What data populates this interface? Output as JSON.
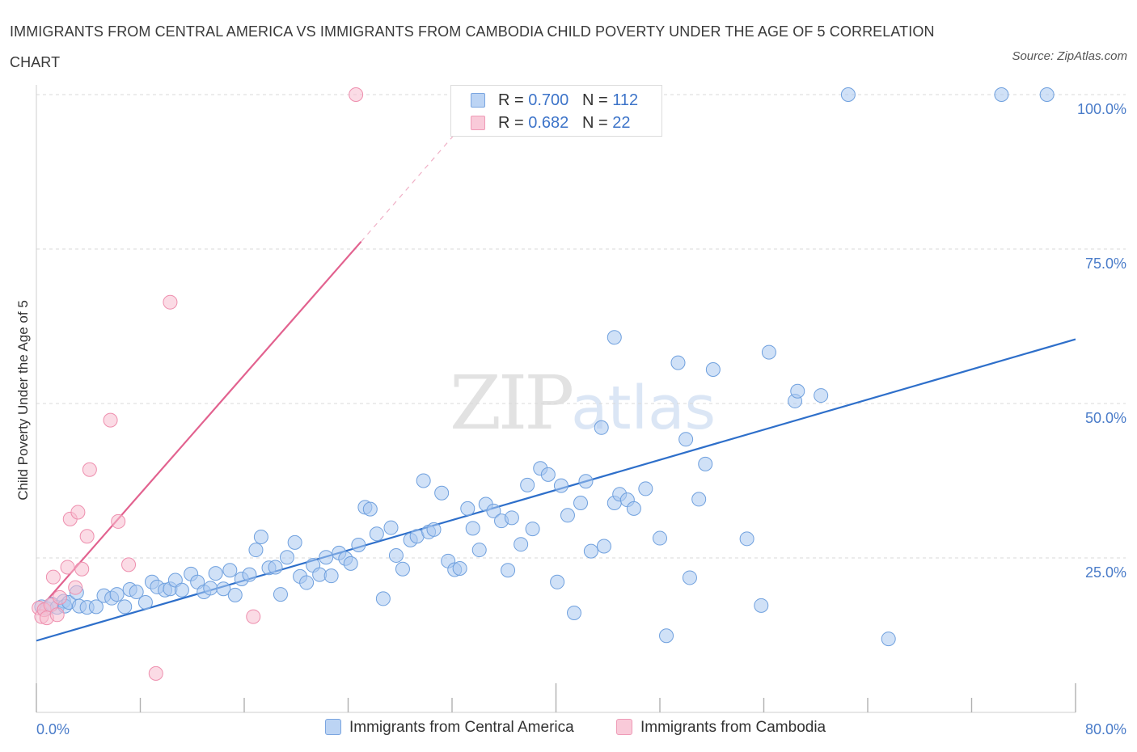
{
  "title": "IMMIGRANTS FROM CENTRAL AMERICA VS IMMIGRANTS FROM CAMBODIA CHILD POVERTY UNDER THE AGE OF 5 CORRELATION CHART",
  "source": "Source: ZipAtlas.com",
  "watermark": {
    "zip": "ZIP",
    "atlas": "atlas"
  },
  "legend": {
    "rows": [
      {
        "r_label": "R = ",
        "r_value": "0.700",
        "n_label": "N = ",
        "n_value": "112"
      },
      {
        "r_label": "R = ",
        "r_value": " 0.682",
        "n_label": "N = ",
        "n_value": " 22"
      }
    ]
  },
  "colors": {
    "blue_fill": "#a9c8f0",
    "blue_stroke": "#6fa0de",
    "blue_line": "#2e6fca",
    "pink_fill": "#f7bdd0",
    "pink_stroke": "#ee8fae",
    "pink_line": "#e2628f",
    "tick": "#4a7cc9",
    "grid": "#d9d9d9"
  },
  "chart_data": {
    "type": "scatter",
    "title": "IMMIGRANTS FROM CENTRAL AMERICA VS IMMIGRANTS FROM CAMBODIA CHILD POVERTY UNDER THE AGE OF 5 CORRELATION CHART",
    "xlabel": "",
    "ylabel": "Child Poverty Under the Age of 5",
    "xlim": [
      0,
      80
    ],
    "ylim": [
      0,
      100
    ],
    "x_tick_labels": [
      {
        "value": 0,
        "label": "0.0%"
      },
      {
        "value": 80,
        "label": "80.0%"
      }
    ],
    "y_tick_labels": [
      {
        "value": 25,
        "label": "25.0%"
      },
      {
        "value": 50,
        "label": "50.0%"
      },
      {
        "value": 75,
        "label": "75.0%"
      },
      {
        "value": 100,
        "label": "100.0%"
      }
    ],
    "grid": true,
    "legend_position": "bottom",
    "series": [
      {
        "name": "Immigrants from Central America",
        "color": "#a9c8f0",
        "R": 0.7,
        "N": 112,
        "trend": {
          "x": [
            0,
            80
          ],
          "y": [
            11.6,
            60.4
          ]
        },
        "points": [
          [
            0.4,
            17.1
          ],
          [
            0.8,
            16.8
          ],
          [
            1.2,
            17.5
          ],
          [
            1.6,
            17.0
          ],
          [
            2.1,
            18.0
          ],
          [
            2.2,
            17.2
          ],
          [
            2.5,
            17.8
          ],
          [
            3.1,
            19.4
          ],
          [
            3.3,
            17.2
          ],
          [
            3.9,
            17.0
          ],
          [
            4.6,
            17.1
          ],
          [
            5.2,
            18.9
          ],
          [
            5.8,
            18.5
          ],
          [
            6.2,
            19.1
          ],
          [
            6.8,
            17.1
          ],
          [
            7.2,
            19.9
          ],
          [
            7.7,
            19.5
          ],
          [
            8.4,
            17.8
          ],
          [
            8.9,
            21.1
          ],
          [
            9.3,
            20.3
          ],
          [
            9.9,
            19.8
          ],
          [
            10.3,
            20.0
          ],
          [
            10.7,
            21.4
          ],
          [
            11.2,
            19.8
          ],
          [
            11.9,
            22.4
          ],
          [
            12.4,
            21.1
          ],
          [
            12.9,
            19.5
          ],
          [
            13.4,
            20.1
          ],
          [
            13.8,
            22.5
          ],
          [
            14.4,
            20.0
          ],
          [
            14.9,
            23.0
          ],
          [
            15.3,
            19.0
          ],
          [
            15.8,
            21.6
          ],
          [
            16.4,
            22.3
          ],
          [
            16.9,
            26.3
          ],
          [
            17.3,
            28.4
          ],
          [
            17.9,
            23.4
          ],
          [
            18.4,
            23.5
          ],
          [
            18.8,
            19.1
          ],
          [
            19.3,
            25.1
          ],
          [
            19.9,
            27.5
          ],
          [
            20.3,
            22.0
          ],
          [
            20.8,
            21.0
          ],
          [
            21.3,
            23.8
          ],
          [
            21.8,
            22.3
          ],
          [
            22.3,
            25.1
          ],
          [
            22.7,
            22.1
          ],
          [
            23.3,
            25.8
          ],
          [
            23.8,
            24.9
          ],
          [
            24.2,
            24.1
          ],
          [
            24.8,
            27.1
          ],
          [
            25.3,
            33.2
          ],
          [
            25.7,
            32.9
          ],
          [
            26.2,
            28.9
          ],
          [
            26.7,
            18.4
          ],
          [
            27.3,
            29.9
          ],
          [
            27.7,
            25.4
          ],
          [
            28.2,
            23.2
          ],
          [
            28.8,
            27.9
          ],
          [
            29.3,
            28.5
          ],
          [
            29.8,
            37.5
          ],
          [
            30.2,
            29.2
          ],
          [
            30.6,
            29.6
          ],
          [
            31.2,
            35.5
          ],
          [
            31.7,
            24.5
          ],
          [
            32.2,
            23.1
          ],
          [
            32.6,
            23.3
          ],
          [
            33.2,
            33.0
          ],
          [
            33.6,
            29.8
          ],
          [
            34.1,
            26.3
          ],
          [
            34.6,
            33.7
          ],
          [
            35.2,
            32.6
          ],
          [
            35.8,
            31.0
          ],
          [
            36.3,
            23.0
          ],
          [
            36.6,
            31.5
          ],
          [
            37.3,
            27.2
          ],
          [
            37.8,
            36.8
          ],
          [
            38.2,
            29.7
          ],
          [
            38.8,
            39.5
          ],
          [
            39.4,
            38.5
          ],
          [
            40.1,
            21.1
          ],
          [
            40.4,
            36.7
          ],
          [
            40.9,
            31.9
          ],
          [
            41.4,
            16.1
          ],
          [
            41.9,
            33.9
          ],
          [
            42.3,
            37.4
          ],
          [
            42.7,
            26.1
          ],
          [
            43.5,
            46.1
          ],
          [
            43.7,
            26.9
          ],
          [
            44.5,
            60.7
          ],
          [
            44.5,
            33.9
          ],
          [
            44.9,
            35.3
          ],
          [
            45.5,
            34.4
          ],
          [
            46.0,
            33.0
          ],
          [
            46.9,
            36.2
          ],
          [
            48.0,
            28.2
          ],
          [
            48.5,
            12.4
          ],
          [
            49.4,
            56.6
          ],
          [
            50.0,
            44.2
          ],
          [
            50.3,
            21.8
          ],
          [
            51.0,
            34.5
          ],
          [
            51.5,
            40.2
          ],
          [
            52.1,
            55.5
          ],
          [
            54.7,
            28.1
          ],
          [
            55.8,
            17.3
          ],
          [
            56.4,
            58.3
          ],
          [
            58.4,
            50.4
          ],
          [
            58.6,
            52.0
          ],
          [
            60.4,
            51.3
          ],
          [
            62.5,
            100.0
          ],
          [
            65.6,
            11.9
          ],
          [
            74.3,
            100.0
          ],
          [
            77.8,
            100.0
          ]
        ]
      },
      {
        "name": "Immigrants from Cambodia",
        "color": "#f7bdd0",
        "R": 0.682,
        "N": 22,
        "trend": {
          "x": [
            0,
            25
          ],
          "y": [
            16.2,
            76.2
          ]
        },
        "trend_extension": {
          "x": [
            25,
            33
          ],
          "y": [
            76.2,
            95.5
          ]
        },
        "points": [
          [
            0.2,
            16.9
          ],
          [
            0.4,
            15.5
          ],
          [
            0.6,
            16.6
          ],
          [
            0.8,
            15.3
          ],
          [
            1.1,
            17.4
          ],
          [
            1.3,
            21.9
          ],
          [
            1.6,
            15.8
          ],
          [
            1.8,
            18.6
          ],
          [
            2.4,
            23.5
          ],
          [
            2.6,
            31.3
          ],
          [
            3.0,
            20.2
          ],
          [
            3.2,
            32.4
          ],
          [
            3.5,
            23.2
          ],
          [
            3.9,
            28.5
          ],
          [
            4.1,
            39.3
          ],
          [
            5.7,
            47.3
          ],
          [
            6.3,
            30.9
          ],
          [
            7.1,
            23.9
          ],
          [
            9.2,
            6.3
          ],
          [
            10.3,
            66.4
          ],
          [
            16.7,
            15.5
          ],
          [
            24.6,
            100.0
          ]
        ]
      }
    ]
  }
}
